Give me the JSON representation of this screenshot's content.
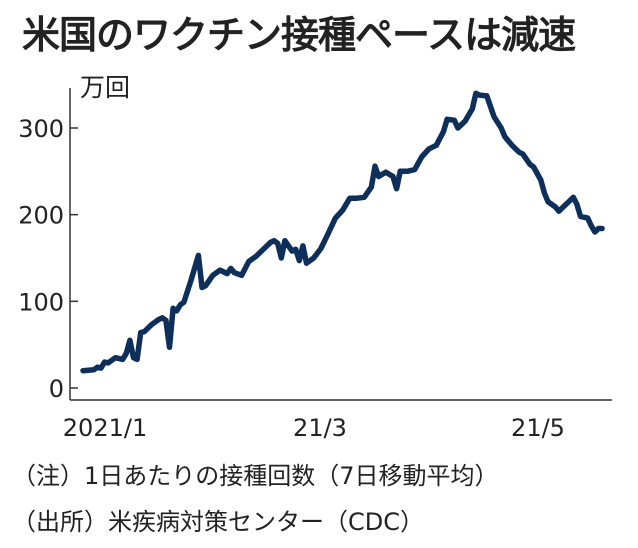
{
  "chart_data": {
    "type": "line",
    "title": "米国のワクチン接種ペースは減速",
    "ylabel": "万回",
    "ylim": [
      0,
      350
    ],
    "yticks": [
      0,
      100,
      200,
      300
    ],
    "xticks": [
      "2021/1",
      "21/3",
      "21/5"
    ],
    "x_start": "2021-01-01",
    "series": [
      {
        "color": "#0d2f5a",
        "values": [
          [
            0,
            20
          ],
          [
            3,
            21
          ],
          [
            4,
            24
          ],
          [
            5,
            23
          ],
          [
            6,
            30
          ],
          [
            7,
            29
          ],
          [
            9,
            35
          ],
          [
            11,
            33
          ],
          [
            12,
            40
          ],
          [
            13,
            55
          ],
          [
            14,
            35
          ],
          [
            15,
            33
          ],
          [
            16,
            64
          ],
          [
            17,
            65
          ],
          [
            19,
            73
          ],
          [
            21,
            79
          ],
          [
            22,
            81
          ],
          [
            23,
            78
          ],
          [
            24,
            47
          ],
          [
            25,
            92
          ],
          [
            26,
            89
          ],
          [
            27,
            96
          ],
          [
            28,
            99
          ],
          [
            30,
            125
          ],
          [
            32,
            153
          ],
          [
            33,
            116
          ],
          [
            34,
            118
          ],
          [
            36,
            130
          ],
          [
            38,
            136
          ],
          [
            40,
            132
          ],
          [
            41,
            138
          ],
          [
            42,
            133
          ],
          [
            44,
            130
          ],
          [
            46,
            146
          ],
          [
            48,
            152
          ],
          [
            50,
            160
          ],
          [
            52,
            168
          ],
          [
            53,
            170
          ],
          [
            54,
            167
          ],
          [
            55,
            150
          ],
          [
            56,
            170
          ],
          [
            58,
            158
          ],
          [
            59,
            160
          ],
          [
            60,
            147
          ],
          [
            61,
            164
          ],
          [
            62,
            144
          ],
          [
            64,
            150
          ],
          [
            66,
            161
          ],
          [
            68,
            178
          ],
          [
            70,
            196
          ],
          [
            72,
            205
          ],
          [
            74,
            219
          ],
          [
            76,
            219
          ],
          [
            78,
            220
          ],
          [
            80,
            232
          ],
          [
            81,
            256
          ],
          [
            82,
            244
          ],
          [
            84,
            249
          ],
          [
            86,
            244
          ],
          [
            87,
            230
          ],
          [
            88,
            250
          ],
          [
            90,
            250
          ],
          [
            92,
            252
          ],
          [
            94,
            267
          ],
          [
            96,
            276
          ],
          [
            98,
            280
          ],
          [
            100,
            296
          ],
          [
            101,
            310
          ],
          [
            103,
            309
          ],
          [
            104,
            300
          ],
          [
            106,
            308
          ],
          [
            108,
            322
          ],
          [
            109,
            340
          ],
          [
            110,
            338
          ],
          [
            112,
            337
          ],
          [
            113,
            325
          ],
          [
            114,
            313
          ],
          [
            116,
            300
          ],
          [
            117,
            290
          ],
          [
            119,
            280
          ],
          [
            121,
            272
          ],
          [
            122,
            270
          ],
          [
            124,
            258
          ],
          [
            125,
            255
          ],
          [
            127,
            240
          ],
          [
            128,
            225
          ],
          [
            129,
            215
          ],
          [
            131,
            209
          ],
          [
            132,
            204
          ],
          [
            133,
            208
          ],
          [
            135,
            216
          ],
          [
            136,
            220
          ],
          [
            137,
            212
          ],
          [
            138,
            198
          ],
          [
            140,
            196
          ],
          [
            141,
            187
          ],
          [
            142,
            180
          ],
          [
            143,
            184
          ],
          [
            144,
            184
          ]
        ]
      }
    ]
  },
  "notes": {
    "note1": "（注）1日あたりの接種回数（7日移動平均）",
    "note2": "（出所）米疾病対策センター（CDC）"
  }
}
